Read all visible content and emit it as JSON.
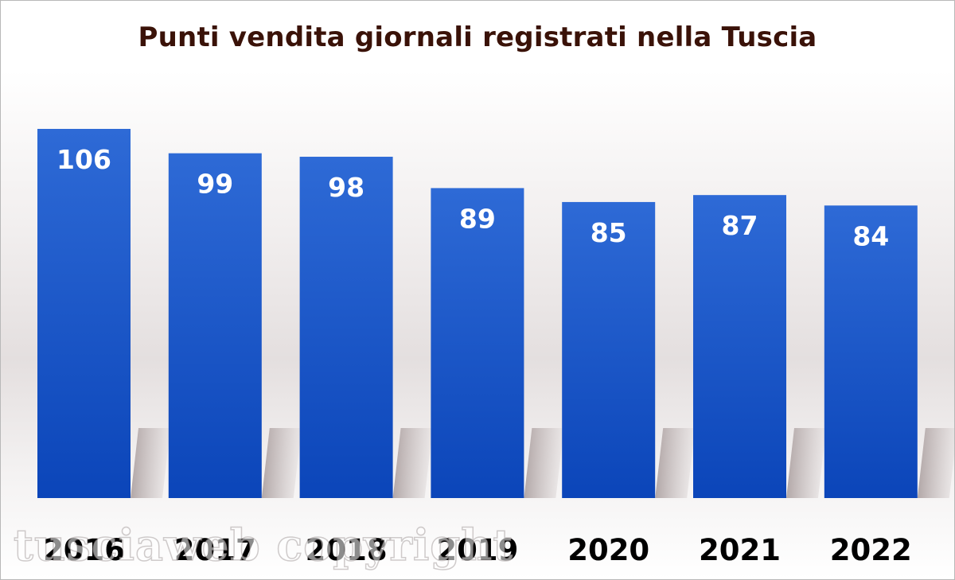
{
  "chart_data": {
    "type": "bar",
    "title": "Punti vendita giornali registrati nella Tuscia",
    "categories": [
      "2016",
      "2017",
      "2018",
      "2019",
      "2020",
      "2021",
      "2022"
    ],
    "values": [
      106,
      99,
      98,
      89,
      85,
      87,
      84
    ],
    "xlabel": "",
    "ylabel": "",
    "ylim": [
      0,
      106
    ],
    "grid": false,
    "legend": "none",
    "bar_color": "#1f55c4",
    "label_color": "#ffffff",
    "title_color": "#3a1208"
  },
  "watermark": "tusciaweb copyright"
}
